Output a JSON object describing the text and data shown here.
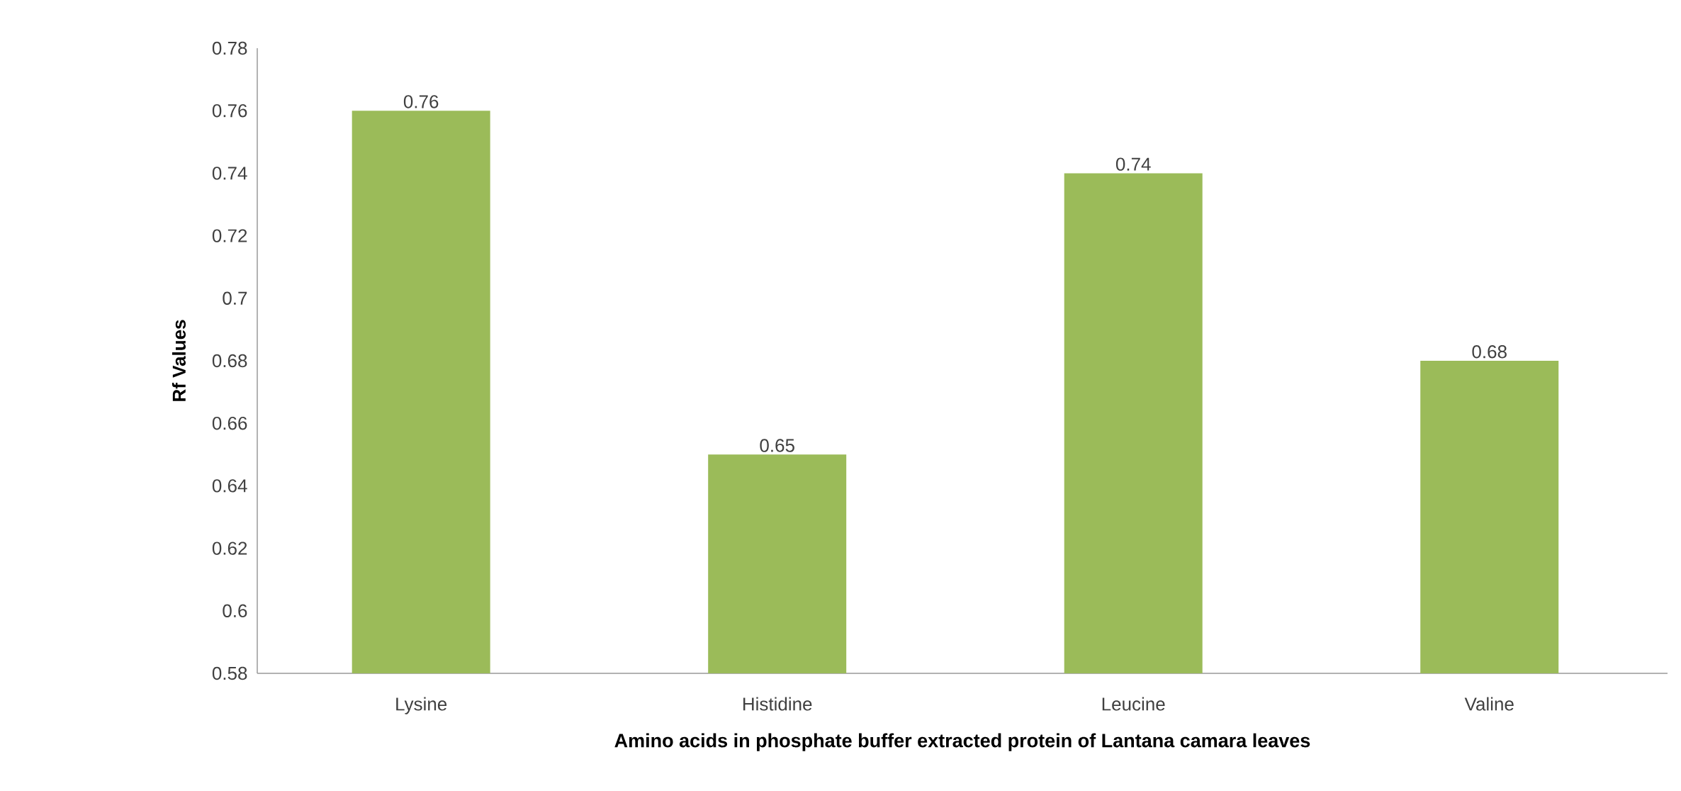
{
  "chart_data": {
    "type": "bar",
    "xlabel": "Amino acids in phosphate  buffer extracted protein of Lantana camara leaves",
    "ylabel": "Rf Values",
    "categories": [
      "Lysine",
      "Histidine",
      "Leucine",
      "Valine"
    ],
    "values": [
      0.76,
      0.65,
      0.74,
      0.68
    ],
    "color": "#9bbb59",
    "ylim": [
      0.58,
      0.78
    ],
    "yticks": [
      0.58,
      0.6,
      0.62,
      0.64,
      0.66,
      0.68,
      0.7,
      0.72,
      0.74,
      0.76,
      0.78
    ],
    "data_labels": true,
    "grid": false
  }
}
